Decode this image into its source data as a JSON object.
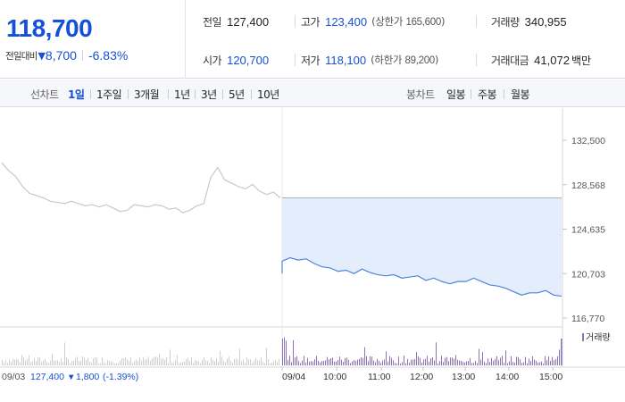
{
  "quote": {
    "price": "118,700",
    "change_label": "전일대비",
    "change_arrow": "▼",
    "change": "8,700",
    "change_pct": "-6.83%"
  },
  "stats": {
    "prev_close_label": "전일",
    "prev_close": "127,400",
    "high_label": "고가",
    "high": "123,400",
    "upper_limit_label": "(상한가",
    "upper_limit": "165,600",
    "upper_limit_close": ")",
    "volume_label": "거래량",
    "volume": "340,955",
    "open_label": "시가",
    "open": "120,700",
    "low_label": "저가",
    "low": "118,100",
    "lower_limit_label": "(하한가",
    "lower_limit": "89,200",
    "lower_limit_close": ")",
    "turnover_label": "거래대금",
    "turnover": "41,072",
    "turnover_unit": "백만"
  },
  "line_tabs": {
    "label": "선차트",
    "items": [
      "1일",
      "1주일",
      "3개월",
      "1년",
      "3년",
      "5년",
      "10년"
    ],
    "active": "1일"
  },
  "candle_tabs": {
    "label": "봉차트",
    "items": [
      "일봉",
      "주봉",
      "월봉"
    ]
  },
  "colors": {
    "accent": "#1550d8",
    "down": "#1550d8",
    "volume": "#8d73b8",
    "prev_line": "#c8c8c8",
    "fill": "#e3edfb"
  },
  "chart_data": {
    "type": "line",
    "y_ticks": [
      "132,500",
      "128,568",
      "124,635",
      "120,703",
      "116,770"
    ],
    "ylim": [
      116770,
      132500
    ],
    "volume_legend": "거래량",
    "prev_day": {
      "date": "09/03",
      "close": "127,400",
      "arrow": "▼",
      "change": "1,800",
      "change_pct": "(-1.39%)"
    },
    "x_labels": [
      "09/04",
      "10:00",
      "11:00",
      "12:00",
      "13:00",
      "14:00",
      "15:00"
    ],
    "prev_close_ref": 127400,
    "series": [
      {
        "values": [
          130500,
          129800,
          129300,
          128400,
          127800,
          127600,
          127400,
          127100,
          127000,
          126900,
          127100,
          126900,
          126700,
          126800,
          126600,
          126800,
          126500,
          126200,
          126300,
          126800,
          126700,
          126600,
          126800,
          126700,
          126400,
          126500,
          126100,
          126300,
          126700,
          126900,
          129200,
          130100,
          129000,
          128700,
          128400,
          128200,
          128600,
          128000,
          127700,
          127900,
          127400
        ]
      },
      {
        "values": [
          121800,
          122100,
          121900,
          122000,
          121600,
          121300,
          121200,
          120900,
          121000,
          120700,
          121100,
          120800,
          120600,
          120500,
          120600,
          120300,
          120400,
          120500,
          120100,
          120300,
          120000,
          119800,
          120000,
          120000,
          120300,
          120000,
          119700,
          119600,
          119400,
          119100,
          118800,
          119000,
          119000,
          119200,
          118800,
          118700
        ]
      }
    ]
  }
}
